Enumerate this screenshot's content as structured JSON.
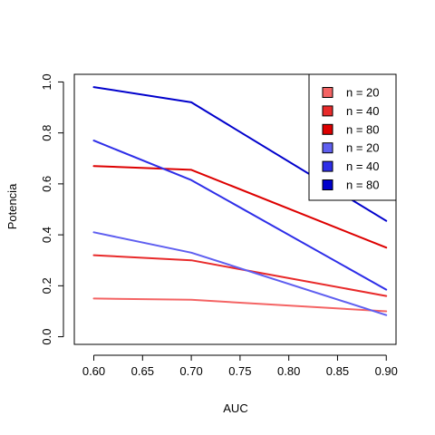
{
  "chart_data": {
    "type": "line",
    "title": "",
    "xlabel": "AUC",
    "ylabel": "Potencia",
    "xlim": [
      0.58,
      0.91
    ],
    "ylim": [
      -0.03,
      1.03
    ],
    "x_ticks": [
      "0.60",
      "0.65",
      "0.70",
      "0.75",
      "0.80",
      "0.85",
      "0.90"
    ],
    "y_ticks": [
      "0.0",
      "0.2",
      "0.4",
      "0.6",
      "0.8",
      "1.0"
    ],
    "grid": false,
    "legend_position": "top-right",
    "x": [
      0.6,
      0.7,
      0.9
    ],
    "series": [
      {
        "name": "n = 20",
        "color": "#f46464",
        "values": [
          0.15,
          0.145,
          0.1
        ]
      },
      {
        "name": "n = 40",
        "color": "#e82a2a",
        "values": [
          0.32,
          0.3,
          0.16
        ]
      },
      {
        "name": "n = 80",
        "color": "#dd0000",
        "values": [
          0.67,
          0.655,
          0.35
        ]
      },
      {
        "name": "n = 20",
        "color": "#5f5ff0",
        "values": [
          0.41,
          0.33,
          0.085
        ]
      },
      {
        "name": "n = 40",
        "color": "#2e2ee8",
        "values": [
          0.77,
          0.615,
          0.185
        ]
      },
      {
        "name": "n = 80",
        "color": "#0000cc",
        "values": [
          0.98,
          0.92,
          0.455
        ]
      }
    ]
  }
}
